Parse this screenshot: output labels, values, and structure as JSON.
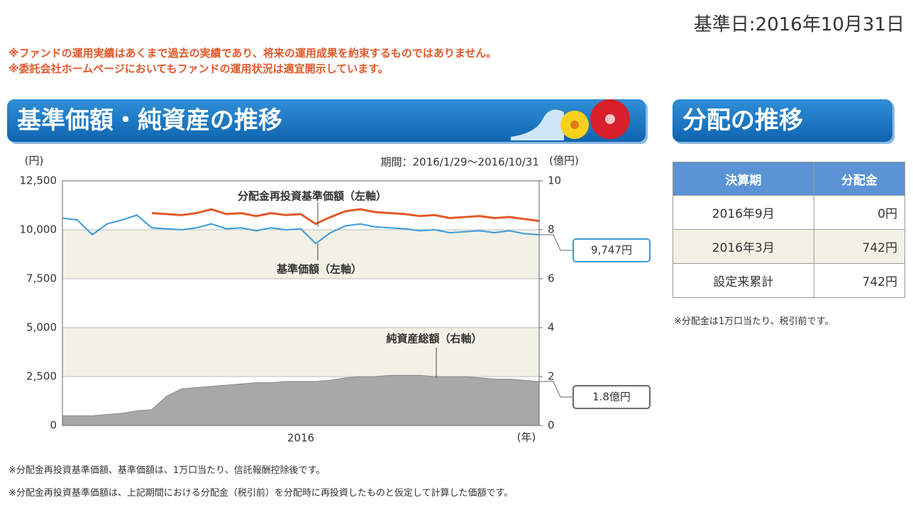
{
  "header": {
    "date": "基準日:2016年10月31日",
    "disclaimers": [
      "※ファンドの運用実績はあくまで過去の実績であり、将来の運用成果を約束するものではありません。",
      "※委託会社ホームページにおいてもファンドの運用状況は適宜開示しています。"
    ]
  },
  "sections": {
    "nav_title": "基準価額・純資産の推移",
    "dist_title": "分配の推移"
  },
  "chart_data": {
    "type": "line",
    "period": "期間：2016/1/29～2016/10/31",
    "y_unit": "(円)",
    "y2_unit": "(億円)",
    "x_unit": "(年)",
    "categories": [
      null,
      null,
      null,
      null,
      null,
      null,
      null,
      null,
      null,
      null,
      null,
      null,
      null,
      null,
      null,
      null,
      "2016",
      null,
      null,
      null,
      null,
      null,
      null,
      null,
      null,
      null,
      null,
      null,
      null,
      null,
      null,
      null,
      null
    ],
    "ylim": [
      0,
      12500
    ],
    "yticks": [
      0,
      {
        "value": 2500,
        "label": "2,500"
      },
      {
        "value": 5000,
        "label": "5,000"
      },
      {
        "value": 7500,
        "label": "7,500"
      },
      {
        "value": 10000,
        "label": "10,000"
      },
      {
        "value": 12500,
        "label": "12,500"
      }
    ],
    "y2lim": [
      0,
      10
    ],
    "y2ticks": [
      0,
      2,
      4,
      6,
      8,
      10
    ],
    "series": [
      {
        "name": "分配金再投資基準価額（左軸）",
        "color": "#e2582a",
        "values": [
          null,
          null,
          null,
          null,
          null,
          null,
          10850,
          10800,
          10750,
          10850,
          11050,
          10800,
          10850,
          10700,
          10850,
          10750,
          10800,
          10300,
          10650,
          10950,
          11050,
          10900,
          10850,
          10800,
          10700,
          10750,
          10600,
          10650,
          10700,
          10600,
          10650,
          10550,
          10450
        ]
      },
      {
        "name": "基準価額（左軸）",
        "color": "#3a9ad9",
        "values": [
          10600,
          10500,
          9750,
          10300,
          10500,
          10750,
          10100,
          10050,
          10000,
          10100,
          10300,
          10050,
          10100,
          9950,
          10100,
          10000,
          10050,
          9300,
          9850,
          10200,
          10300,
          10150,
          10100,
          10050,
          9950,
          10000,
          9850,
          9900,
          9950,
          9850,
          9950,
          9800,
          9747
        ]
      },
      {
        "name": "純資産総額（右軸）",
        "color": "#a8a8a8",
        "type": "area",
        "axis": "y2",
        "values": [
          0.4,
          0.4,
          0.4,
          0.45,
          0.5,
          0.6,
          0.65,
          1.2,
          1.5,
          1.55,
          1.6,
          1.65,
          1.7,
          1.75,
          1.75,
          1.8,
          1.8,
          1.8,
          1.85,
          1.95,
          2.0,
          2.0,
          2.05,
          2.05,
          2.05,
          2.0,
          2.0,
          2.0,
          1.95,
          1.9,
          1.9,
          1.85,
          1.8
        ]
      }
    ],
    "callouts": [
      "9,747円",
      "1.8億円"
    ],
    "band_colors": [
      "#ffffff",
      "#f3f1e6"
    ]
  },
  "table": {
    "header": [
      "決算期",
      "分配金"
    ],
    "rows": [
      [
        "2016年9月",
        "0円"
      ],
      [
        "2016年3月",
        "742円"
      ],
      [
        "設定来累計",
        "742円"
      ]
    ],
    "note": "※分配金は1万口当たり、税引前です。"
  },
  "notes": [
    "※分配金再投資基準価額、基準価額は、1万口当たり、信託報酬控除後です。",
    "※分配金再投資基準価額は、上記期間における分配金（税引前）を分配時に再投資したものと仮定して計算した価額です。"
  ]
}
